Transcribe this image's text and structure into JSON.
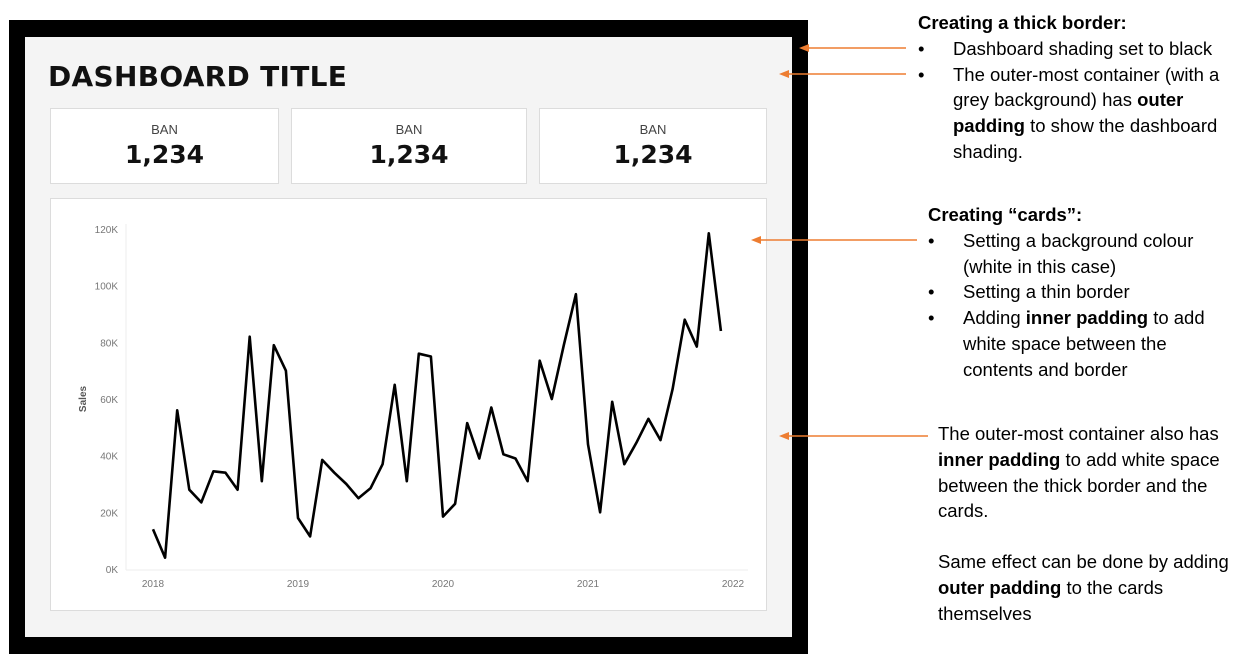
{
  "dashboard": {
    "title": "DASHBOARD TITLE",
    "bans": [
      {
        "label": "BAN",
        "value": "1,234"
      },
      {
        "label": "BAN",
        "value": "1,234"
      },
      {
        "label": "BAN",
        "value": "1,234"
      }
    ]
  },
  "chart_data": {
    "type": "line",
    "ylabel": "Sales",
    "xlabel": "",
    "ylim": [
      0,
      120000
    ],
    "y_ticks": [
      "0K",
      "20K",
      "40K",
      "60K",
      "80K",
      "100K",
      "120K"
    ],
    "x_ticks": [
      "2018",
      "2019",
      "2020",
      "2021",
      "2022"
    ],
    "x": [
      "2018-01",
      "2018-02",
      "2018-03",
      "2018-04",
      "2018-05",
      "2018-06",
      "2018-07",
      "2018-08",
      "2018-09",
      "2018-10",
      "2018-11",
      "2018-12",
      "2019-01",
      "2019-02",
      "2019-03",
      "2019-04",
      "2019-05",
      "2019-06",
      "2019-07",
      "2019-08",
      "2019-09",
      "2019-10",
      "2019-11",
      "2019-12",
      "2020-01",
      "2020-02",
      "2020-03",
      "2020-04",
      "2020-05",
      "2020-06",
      "2020-07",
      "2020-08",
      "2020-09",
      "2020-10",
      "2020-11",
      "2020-12",
      "2021-01",
      "2021-02",
      "2021-03",
      "2021-04",
      "2021-05",
      "2021-06",
      "2021-07",
      "2021-08",
      "2021-09",
      "2021-10",
      "2021-11",
      "2021-12"
    ],
    "values": [
      14000,
      4000,
      56000,
      28000,
      23500,
      34500,
      34000,
      28000,
      82000,
      31000,
      79000,
      70000,
      18000,
      11500,
      38500,
      34000,
      30000,
      25000,
      28500,
      37000,
      65000,
      31000,
      76000,
      75000,
      18500,
      23000,
      51500,
      39000,
      57000,
      40500,
      39000,
      31000,
      73500,
      60000,
      79000,
      97000,
      44000,
      20000,
      59000,
      37000,
      44500,
      53000,
      45500,
      63500,
      88000,
      78500,
      118500,
      84000
    ],
    "grid": false,
    "legend": "none",
    "line_color": "#000000"
  },
  "annotations": {
    "thick_border": {
      "heading": "Creating a thick border:",
      "bullet1": "Dashboard shading set to black",
      "bullet2_pre": "The outer-most container (with a grey background) has ",
      "bullet2_bold": "outer padding",
      "bullet2_post": " to show the dashboard shading."
    },
    "cards": {
      "heading": "Creating “cards”:",
      "bullet1": "Setting a background colour (white in this case)",
      "bullet2": "Setting a thin border",
      "bullet3_pre": "Adding ",
      "bullet3_bold": "inner padding",
      "bullet3_post": " to add white space between the contents and border"
    },
    "inner": {
      "p1_pre": "The outer-most container also has ",
      "p1_bold": "inner padding",
      "p1_post": " to add white space between the thick border and the cards.",
      "p2_pre": "Same effect can be done by adding ",
      "p2_bold": "outer padding",
      "p2_post": " to the cards themselves"
    },
    "arrow_color": "#ed7d31"
  }
}
